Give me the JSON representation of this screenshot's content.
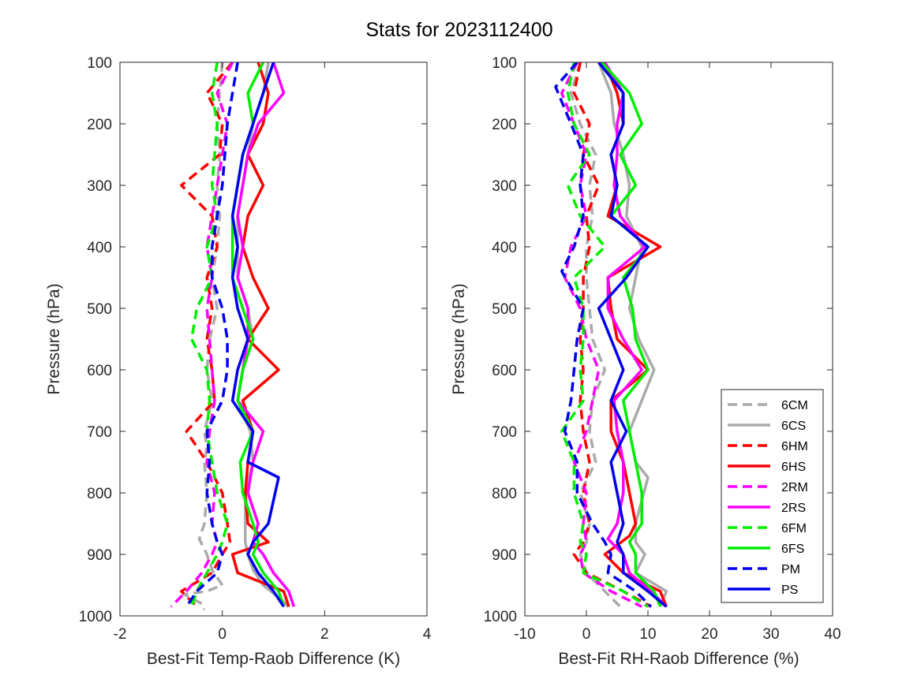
{
  "figure": {
    "title": "Stats for 2023112400"
  },
  "chart_data": [
    {
      "type": "line",
      "xlabel": "Best-Fit Temp-Raob Difference (K)",
      "ylabel": "Pressure (hPa)",
      "xlim": [
        -2,
        4
      ],
      "ylim": [
        100,
        1000
      ],
      "y_reversed": true,
      "xticks": [
        -2,
        0,
        2,
        4
      ],
      "yticks": [
        100,
        200,
        300,
        400,
        500,
        600,
        700,
        800,
        900,
        1000
      ],
      "grid": false,
      "series": [
        {
          "name": "6CM",
          "color": "#aaaaaa",
          "dash": true,
          "x": [
            0.0,
            -0.05,
            -0.1,
            -0.05,
            -0.1,
            -0.05,
            -0.1,
            -0.2,
            -0.1,
            -0.25,
            -0.3,
            -0.2,
            -0.35,
            -0.3,
            -0.35,
            -0.3,
            -0.35,
            -0.45,
            -0.3,
            -0.2,
            0.0,
            -0.3,
            -0.75,
            -0.4,
            -0.35
          ],
          "y": [
            100,
            150,
            200,
            250,
            300,
            350,
            400,
            450,
            500,
            550,
            600,
            650,
            700,
            725,
            750,
            800,
            850,
            875,
            900,
            925,
            950,
            960,
            965,
            980,
            990
          ]
        },
        {
          "name": "6CS",
          "color": "#aaaaaa",
          "dash": false,
          "x": [
            0.9,
            0.8,
            0.6,
            0.5,
            0.4,
            0.3,
            0.3,
            0.3,
            0.5,
            0.6,
            0.4,
            0.3,
            0.55,
            0.6,
            0.45,
            0.45,
            0.45,
            0.5,
            0.6,
            0.8,
            1.1,
            1.3
          ],
          "y": [
            100,
            150,
            200,
            250,
            300,
            350,
            400,
            450,
            500,
            550,
            600,
            650,
            700,
            750,
            800,
            850,
            880,
            900,
            925,
            950,
            970,
            985
          ]
        },
        {
          "name": "6HM",
          "color": "#ff0000",
          "dash": true,
          "x": [
            0.2,
            -0.3,
            0.0,
            -0.05,
            -0.8,
            -0.2,
            -0.1,
            -0.3,
            -0.2,
            -0.3,
            -0.2,
            -0.15,
            -0.7,
            -0.3,
            0.0,
            0.1,
            0.15,
            0.0,
            -0.2,
            -0.8,
            -0.5
          ],
          "y": [
            100,
            150,
            200,
            250,
            300,
            350,
            400,
            450,
            500,
            550,
            600,
            650,
            700,
            750,
            800,
            850,
            880,
            900,
            930,
            960,
            985
          ]
        },
        {
          "name": "6HS",
          "color": "#ff0000",
          "dash": false,
          "x": [
            0.7,
            0.9,
            0.8,
            0.5,
            0.8,
            0.5,
            0.4,
            0.6,
            0.9,
            0.5,
            1.1,
            0.4,
            0.6,
            0.5,
            0.45,
            0.5,
            0.9,
            0.2,
            0.3,
            1.2,
            1.3
          ],
          "y": [
            100,
            150,
            200,
            250,
            300,
            350,
            400,
            450,
            500,
            550,
            600,
            650,
            700,
            750,
            800,
            850,
            880,
            900,
            930,
            960,
            985
          ]
        },
        {
          "name": "2RM",
          "color": "#ff00ff",
          "dash": true,
          "x": [
            0.2,
            -0.1,
            0.1,
            0.0,
            -0.1,
            -0.2,
            -0.3,
            -0.2,
            -0.3,
            -0.25,
            -0.2,
            -0.15,
            -0.25,
            -0.3,
            -0.15,
            -0.2,
            -0.1,
            -0.2,
            -0.4,
            -0.7,
            -1.0
          ],
          "y": [
            100,
            150,
            200,
            250,
            300,
            350,
            400,
            450,
            500,
            550,
            600,
            650,
            700,
            750,
            800,
            850,
            880,
            900,
            930,
            960,
            985
          ]
        },
        {
          "name": "2RS",
          "color": "#ff00ff",
          "dash": false,
          "x": [
            1.0,
            1.2,
            0.7,
            0.5,
            0.4,
            0.3,
            0.4,
            0.3,
            0.5,
            0.5,
            0.4,
            0.3,
            0.8,
            0.6,
            0.5,
            0.7,
            0.6,
            0.8,
            1.0,
            1.3,
            1.4
          ],
          "y": [
            100,
            150,
            200,
            250,
            300,
            350,
            400,
            450,
            500,
            550,
            600,
            650,
            700,
            750,
            800,
            850,
            880,
            900,
            930,
            960,
            985
          ]
        },
        {
          "name": "6FM",
          "color": "#00ee00",
          "dash": true,
          "x": [
            -0.1,
            -0.2,
            -0.1,
            -0.15,
            -0.2,
            -0.1,
            -0.3,
            -0.2,
            -0.5,
            -0.6,
            -0.3,
            -0.25,
            -0.3,
            -0.2,
            -0.1,
            0.1,
            0.0,
            -0.1,
            -0.3,
            -0.5,
            -0.6
          ],
          "y": [
            100,
            150,
            200,
            250,
            300,
            350,
            400,
            450,
            500,
            550,
            600,
            650,
            700,
            750,
            800,
            850,
            880,
            900,
            930,
            960,
            985
          ]
        },
        {
          "name": "6FS",
          "color": "#00ee00",
          "dash": false,
          "x": [
            0.8,
            0.5,
            0.6,
            0.4,
            0.3,
            0.2,
            0.2,
            0.2,
            0.4,
            0.6,
            0.4,
            0.3,
            0.6,
            0.35,
            0.4,
            0.6,
            0.7,
            0.6,
            0.8,
            1.1,
            1.2
          ],
          "y": [
            100,
            150,
            200,
            250,
            300,
            350,
            400,
            450,
            500,
            550,
            600,
            650,
            700,
            750,
            800,
            850,
            880,
            900,
            930,
            960,
            985
          ]
        },
        {
          "name": "PM",
          "color": "#0000ee",
          "dash": true,
          "x": [
            0.3,
            0.2,
            0.1,
            0.05,
            0.0,
            -0.1,
            -0.2,
            -0.2,
            0.0,
            0.1,
            0.1,
            0.0,
            -0.3,
            -0.25,
            -0.3,
            -0.2,
            -0.1,
            0.0,
            -0.1,
            -0.5,
            -0.7
          ],
          "y": [
            100,
            150,
            200,
            250,
            300,
            350,
            400,
            450,
            500,
            550,
            600,
            650,
            700,
            750,
            800,
            850,
            880,
            900,
            930,
            960,
            985
          ]
        },
        {
          "name": "PS",
          "color": "#0000ee",
          "dash": false,
          "x": [
            1.0,
            0.8,
            0.6,
            0.4,
            0.3,
            0.2,
            0.3,
            0.2,
            0.3,
            0.5,
            0.3,
            0.2,
            0.6,
            0.5,
            1.1,
            0.9,
            0.6,
            0.5,
            0.7,
            1.0,
            1.2
          ],
          "y": [
            100,
            150,
            200,
            250,
            300,
            350,
            400,
            450,
            500,
            550,
            600,
            650,
            700,
            750,
            775,
            850,
            880,
            900,
            930,
            960,
            985
          ]
        }
      ]
    },
    {
      "type": "line",
      "xlabel": "Best-Fit RH-Raob Difference (%)",
      "ylabel": "Pressure (hPa)",
      "xlim": [
        -10,
        40
      ],
      "ylim": [
        100,
        1000
      ],
      "y_reversed": true,
      "xticks": [
        -10,
        0,
        10,
        20,
        30,
        40
      ],
      "yticks": [
        100,
        200,
        300,
        400,
        500,
        600,
        700,
        800,
        900,
        1000
      ],
      "grid": false,
      "legend": {
        "position": "bottom-right",
        "entries": [
          "6CM",
          "6CS",
          "6HM",
          "6HS",
          "2RM",
          "2RS",
          "6FM",
          "6FS",
          "PM",
          "PS"
        ]
      },
      "series": [
        {
          "name": "6CM",
          "color": "#aaaaaa",
          "dash": true,
          "x": [
            -1.0,
            -2.5,
            -1.0,
            1.5,
            0.5,
            1.0,
            0.0,
            0.0,
            0.5,
            1.0,
            3.0,
            1.0,
            0.5,
            1.5,
            -1.0,
            0.5,
            0.0,
            -1.0,
            0.0,
            3.0,
            5.5
          ],
          "y": [
            100,
            150,
            200,
            250,
            300,
            350,
            400,
            450,
            500,
            550,
            600,
            650,
            700,
            750,
            800,
            850,
            880,
            900,
            930,
            960,
            985
          ]
        },
        {
          "name": "6CS",
          "color": "#aaaaaa",
          "dash": false,
          "x": [
            2.0,
            4.0,
            4.5,
            6.0,
            7.0,
            6.5,
            9.0,
            8.0,
            7.0,
            8.5,
            11.0,
            9.0,
            7.0,
            8.0,
            10.0,
            8.0,
            8.0,
            9.5,
            8.0,
            13.0,
            12.0
          ],
          "y": [
            100,
            150,
            200,
            250,
            300,
            350,
            400,
            450,
            500,
            550,
            600,
            650,
            700,
            750,
            775,
            850,
            880,
            900,
            930,
            960,
            985
          ]
        },
        {
          "name": "6HM",
          "color": "#ff0000",
          "dash": true,
          "x": [
            -1.0,
            -2.0,
            0.5,
            -0.5,
            2.0,
            0.0,
            0.5,
            -0.5,
            -0.5,
            -1.0,
            -0.5,
            -1.0,
            -0.5,
            0.5,
            -0.5,
            0.5,
            -0.5,
            -2.0,
            0.0,
            6.0,
            10.5
          ],
          "y": [
            100,
            150,
            200,
            250,
            300,
            350,
            400,
            450,
            500,
            550,
            600,
            650,
            700,
            750,
            800,
            850,
            880,
            900,
            930,
            960,
            985
          ]
        },
        {
          "name": "6HS",
          "color": "#ff0000",
          "dash": false,
          "x": [
            3.0,
            5.0,
            6.0,
            4.0,
            5.0,
            3.5,
            12.0,
            3.5,
            4.0,
            5.0,
            10.0,
            4.0,
            4.0,
            6.0,
            7.0,
            8.0,
            7.0,
            3.0,
            6.0,
            12.0,
            13.0
          ],
          "y": [
            100,
            150,
            200,
            250,
            300,
            350,
            400,
            450,
            500,
            550,
            600,
            650,
            700,
            750,
            800,
            850,
            870,
            900,
            930,
            960,
            985
          ]
        },
        {
          "name": "2RM",
          "color": "#ff00ff",
          "dash": true,
          "x": [
            -1.5,
            -4.0,
            -2.0,
            0.0,
            -1.0,
            0.0,
            -2.5,
            -3.5,
            -1.0,
            0.0,
            2.0,
            1.0,
            0.0,
            -2.0,
            0.0,
            -0.5,
            0.0,
            -1.0,
            -0.5,
            4.0,
            9.0
          ],
          "y": [
            100,
            150,
            200,
            250,
            300,
            350,
            400,
            450,
            500,
            550,
            600,
            650,
            700,
            750,
            800,
            850,
            880,
            900,
            930,
            960,
            985
          ]
        },
        {
          "name": "2RS",
          "color": "#ff00ff",
          "dash": false,
          "x": [
            3.0,
            6.0,
            5.0,
            5.0,
            4.5,
            5.5,
            9.5,
            3.5,
            3.5,
            6.0,
            9.0,
            4.5,
            5.0,
            6.0,
            6.0,
            5.0,
            3.5,
            6.0,
            7.0,
            10.5,
            13.0
          ],
          "y": [
            100,
            150,
            200,
            250,
            300,
            350,
            400,
            450,
            500,
            550,
            600,
            650,
            700,
            750,
            800,
            850,
            875,
            900,
            930,
            960,
            985
          ]
        },
        {
          "name": "6FM",
          "color": "#00ee00",
          "dash": true,
          "x": [
            -2.0,
            -3.0,
            -2.0,
            0.5,
            -3.0,
            -1.0,
            3.0,
            -2.0,
            -0.5,
            -0.5,
            -1.0,
            -0.5,
            -4.0,
            -2.0,
            -2.0,
            -0.5,
            -1.0,
            0.0,
            -0.5,
            6.0,
            10.0
          ],
          "y": [
            100,
            150,
            200,
            250,
            300,
            350,
            400,
            450,
            500,
            550,
            600,
            650,
            700,
            750,
            800,
            850,
            880,
            900,
            930,
            960,
            985
          ]
        },
        {
          "name": "6FS",
          "color": "#00ee00",
          "dash": false,
          "x": [
            2.5,
            7.0,
            9.0,
            5.5,
            8.0,
            4.0,
            10.0,
            6.0,
            7.5,
            8.0,
            10.0,
            6.0,
            7.0,
            8.0,
            9.0,
            9.0,
            7.0,
            8.0,
            8.0,
            11.0,
            12.0
          ],
          "y": [
            100,
            150,
            200,
            250,
            300,
            350,
            400,
            450,
            500,
            550,
            600,
            650,
            700,
            750,
            800,
            850,
            880,
            900,
            930,
            960,
            985
          ]
        },
        {
          "name": "PM",
          "color": "#0000ee",
          "dash": true,
          "x": [
            -1.5,
            -5.0,
            -2.5,
            -0.5,
            -1.0,
            -0.5,
            -2.0,
            -4.0,
            -0.5,
            -1.5,
            -2.0,
            -2.5,
            -3.5,
            -1.5,
            -1.5,
            1.0,
            3.0,
            4.0,
            3.5,
            8.0,
            10.5
          ],
          "y": [
            100,
            140,
            200,
            250,
            300,
            350,
            400,
            440,
            500,
            550,
            600,
            650,
            700,
            750,
            800,
            850,
            880,
            900,
            930,
            960,
            985
          ]
        },
        {
          "name": "PS",
          "color": "#0000ee",
          "dash": false,
          "x": [
            2.0,
            6.0,
            6.0,
            4.0,
            5.0,
            4.0,
            10.0,
            6.5,
            2.0,
            4.0,
            6.0,
            4.0,
            6.5,
            4.0,
            5.0,
            6.0,
            5.0,
            6.0,
            6.0,
            10.0,
            13.0
          ],
          "y": [
            100,
            150,
            200,
            250,
            300,
            350,
            400,
            450,
            500,
            550,
            600,
            650,
            700,
            750,
            800,
            850,
            880,
            900,
            930,
            960,
            985
          ]
        }
      ]
    }
  ]
}
